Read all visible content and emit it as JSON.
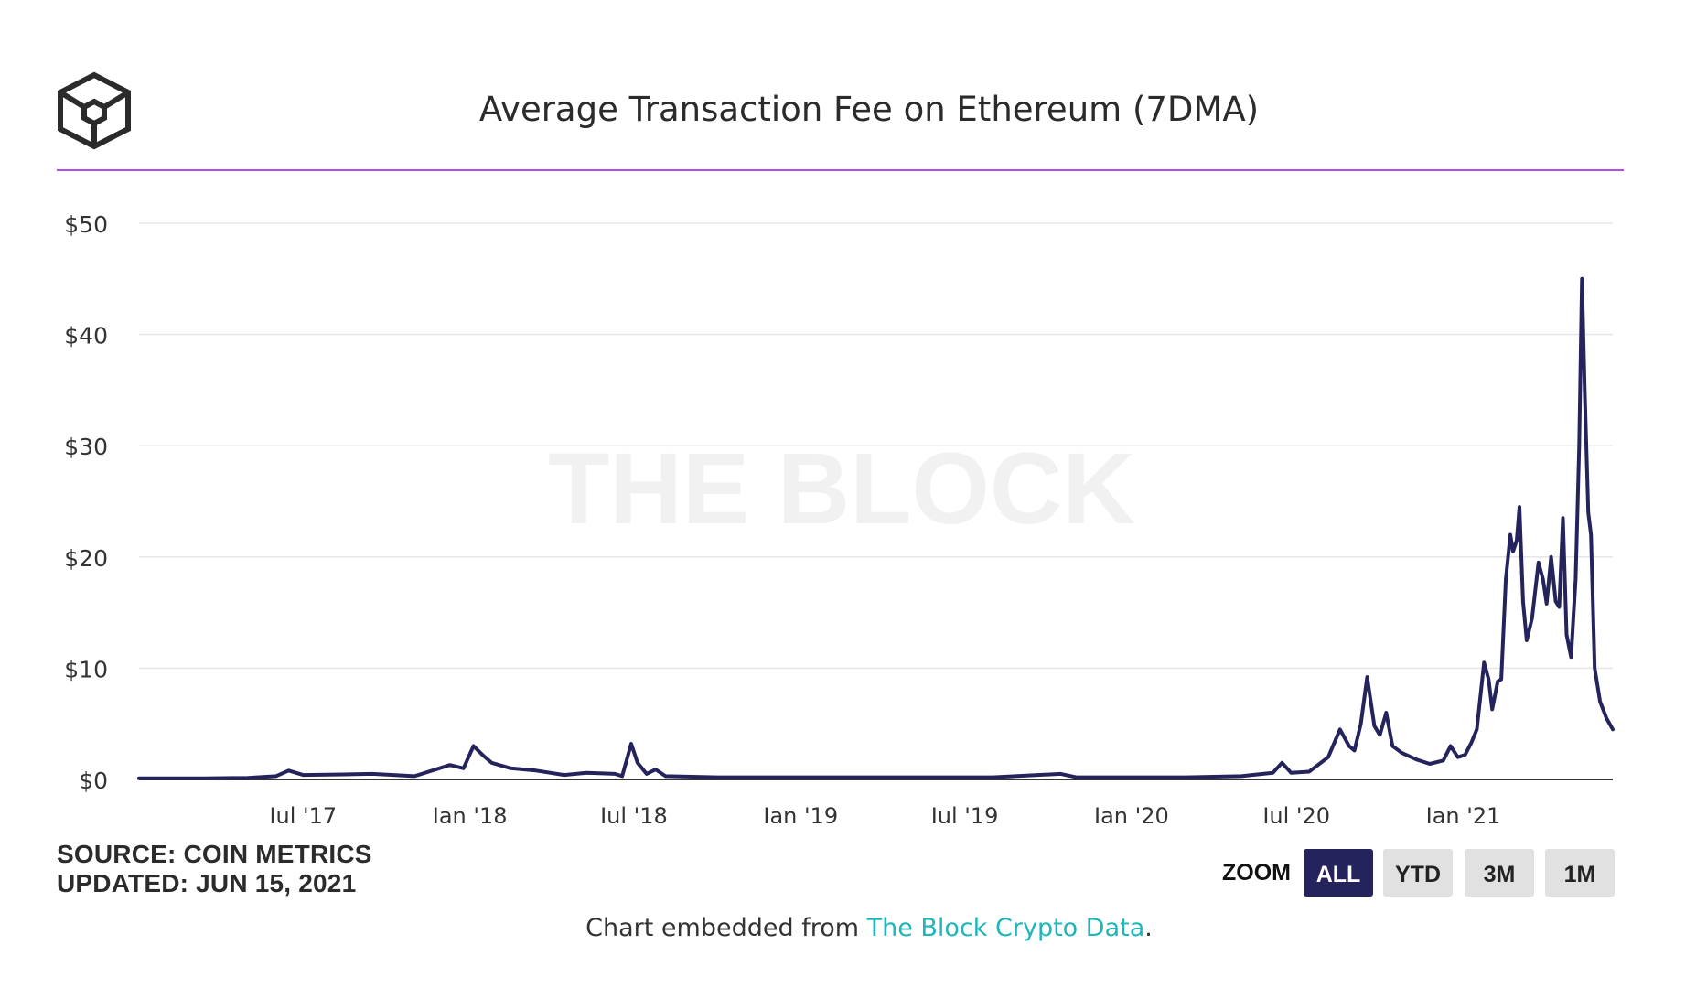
{
  "header": {
    "title": "Average Transaction Fee on Ethereum (7DMA)",
    "accent_color": "#b14de8"
  },
  "logo": {
    "icon": "the-block-cube-logo-icon"
  },
  "watermark": "THE BLOCK",
  "footer": {
    "source": "SOURCE: COIN METRICS",
    "updated": "UPDATED: JUN 15, 2021",
    "embed_prefix": "Chart embedded from ",
    "embed_link": "The Block Crypto Data",
    "embed_suffix": ".",
    "link_color": "#1fb5b9"
  },
  "zoom": {
    "label": "ZOOM",
    "options": [
      "ALL",
      "YTD",
      "3M",
      "1M"
    ],
    "selected": "ALL"
  },
  "chart_data": {
    "type": "line",
    "title": "Average Transaction Fee on Ethereum (7DMA)",
    "xlabel": "",
    "ylabel": "",
    "ylim": [
      0,
      50
    ],
    "xlim": [
      "2017-01-01",
      "2021-06-15"
    ],
    "y_ticks": [
      "$0",
      "$10",
      "$20",
      "$30",
      "$40",
      "$50"
    ],
    "y_tick_values": [
      0,
      10,
      20,
      30,
      40,
      50
    ],
    "x_ticks": [
      "Jul '17",
      "Jan '18",
      "Jul '18",
      "Jan '19",
      "Jul '19",
      "Jan '20",
      "Jul '20",
      "Jan '21"
    ],
    "x_tick_dates": [
      "2017-07-01",
      "2018-01-01",
      "2018-07-01",
      "2019-01-01",
      "2019-07-01",
      "2020-01-01",
      "2020-07-01",
      "2021-01-01"
    ],
    "grid": true,
    "legend": "none",
    "line_color": "#25235c",
    "series": [
      {
        "points": [
          [
            "2017-01-01",
            0.1
          ],
          [
            "2017-03-15",
            0.1
          ],
          [
            "2017-05-01",
            0.15
          ],
          [
            "2017-06-01",
            0.3
          ],
          [
            "2017-06-15",
            0.8
          ],
          [
            "2017-07-01",
            0.4
          ],
          [
            "2017-08-15",
            0.45
          ],
          [
            "2017-09-15",
            0.5
          ],
          [
            "2017-11-01",
            0.3
          ],
          [
            "2017-12-10",
            1.3
          ],
          [
            "2017-12-25",
            1.0
          ],
          [
            "2018-01-05",
            3.0
          ],
          [
            "2018-01-15",
            2.2
          ],
          [
            "2018-01-25",
            1.5
          ],
          [
            "2018-02-15",
            1.0
          ],
          [
            "2018-03-15",
            0.8
          ],
          [
            "2018-04-15",
            0.4
          ],
          [
            "2018-05-10",
            0.6
          ],
          [
            "2018-06-10",
            0.5
          ],
          [
            "2018-06-18",
            0.3
          ],
          [
            "2018-06-28",
            3.2
          ],
          [
            "2018-07-05",
            1.5
          ],
          [
            "2018-07-15",
            0.5
          ],
          [
            "2018-07-25",
            0.9
          ],
          [
            "2018-08-05",
            0.3
          ],
          [
            "2018-10-01",
            0.2
          ],
          [
            "2019-03-01",
            0.2
          ],
          [
            "2019-08-01",
            0.2
          ],
          [
            "2019-10-15",
            0.5
          ],
          [
            "2019-11-01",
            0.2
          ],
          [
            "2020-03-01",
            0.2
          ],
          [
            "2020-05-01",
            0.3
          ],
          [
            "2020-06-05",
            0.6
          ],
          [
            "2020-06-15",
            1.5
          ],
          [
            "2020-06-25",
            0.6
          ],
          [
            "2020-07-15",
            0.7
          ],
          [
            "2020-08-05",
            2.0
          ],
          [
            "2020-08-18",
            4.5
          ],
          [
            "2020-08-28",
            3.0
          ],
          [
            "2020-09-03",
            2.6
          ],
          [
            "2020-09-10",
            5.0
          ],
          [
            "2020-09-17",
            9.2
          ],
          [
            "2020-09-25",
            4.8
          ],
          [
            "2020-10-01",
            4.0
          ],
          [
            "2020-10-08",
            6.0
          ],
          [
            "2020-10-15",
            3.0
          ],
          [
            "2020-10-25",
            2.4
          ],
          [
            "2020-11-10",
            1.8
          ],
          [
            "2020-11-25",
            1.4
          ],
          [
            "2020-12-10",
            1.7
          ],
          [
            "2020-12-18",
            3.0
          ],
          [
            "2020-12-26",
            2.0
          ],
          [
            "2021-01-03",
            2.2
          ],
          [
            "2021-01-10",
            3.3
          ],
          [
            "2021-01-16",
            4.5
          ],
          [
            "2021-01-24",
            10.5
          ],
          [
            "2021-01-29",
            9.0
          ],
          [
            "2021-02-02",
            6.3
          ],
          [
            "2021-02-08",
            8.8
          ],
          [
            "2021-02-12",
            9.0
          ],
          [
            "2021-02-17",
            18.0
          ],
          [
            "2021-02-22",
            22.0
          ],
          [
            "2021-02-25",
            20.5
          ],
          [
            "2021-03-01",
            21.5
          ],
          [
            "2021-03-04",
            24.5
          ],
          [
            "2021-03-08",
            16.0
          ],
          [
            "2021-03-12",
            12.5
          ],
          [
            "2021-03-18",
            14.5
          ],
          [
            "2021-03-25",
            19.5
          ],
          [
            "2021-03-30",
            18.0
          ],
          [
            "2021-04-03",
            15.8
          ],
          [
            "2021-04-08",
            20.0
          ],
          [
            "2021-04-13",
            16.0
          ],
          [
            "2021-04-17",
            15.5
          ],
          [
            "2021-04-21",
            23.5
          ],
          [
            "2021-04-25",
            13.0
          ],
          [
            "2021-04-30",
            11.0
          ],
          [
            "2021-05-05",
            18.0
          ],
          [
            "2021-05-09",
            30.0
          ],
          [
            "2021-05-12",
            45.0
          ],
          [
            "2021-05-15",
            35.0
          ],
          [
            "2021-05-19",
            24.0
          ],
          [
            "2021-05-22",
            22.0
          ],
          [
            "2021-05-26",
            10.0
          ],
          [
            "2021-06-01",
            7.0
          ],
          [
            "2021-06-08",
            5.5
          ],
          [
            "2021-06-15",
            4.5
          ]
        ]
      }
    ]
  }
}
